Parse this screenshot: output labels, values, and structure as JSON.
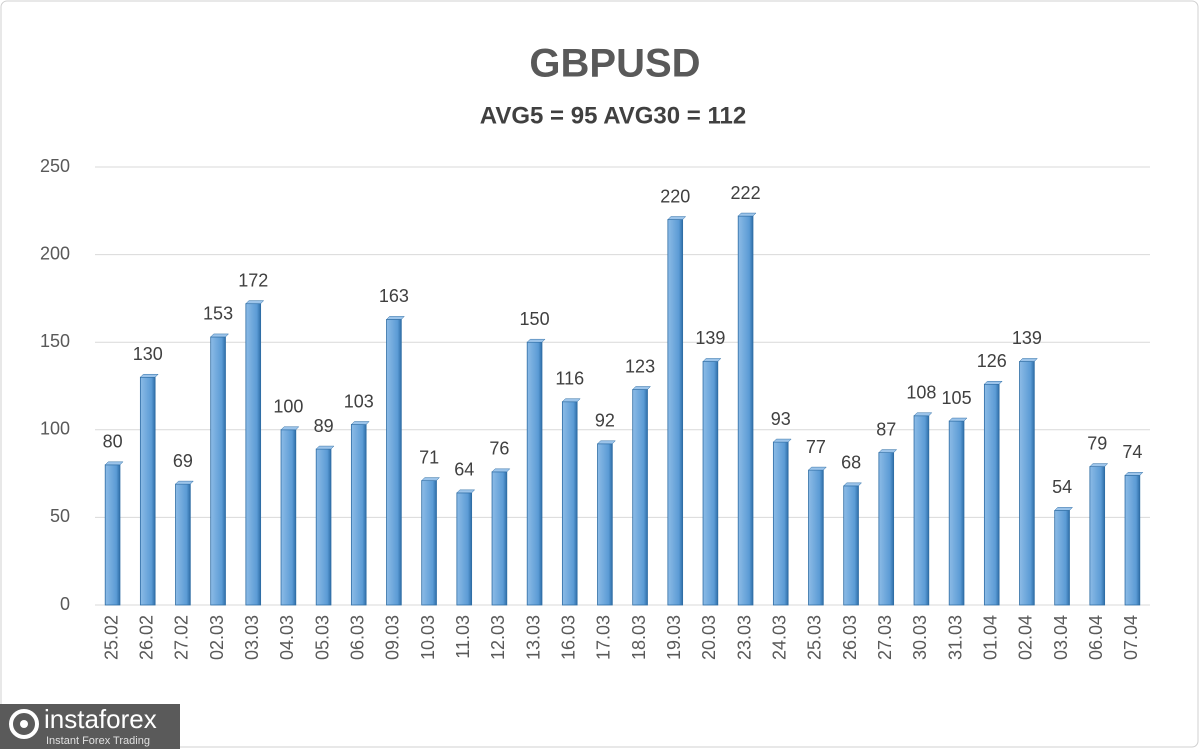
{
  "chart_data": {
    "type": "bar",
    "title": "GBPUSD",
    "subtitle": "AVG5 = 95 AVG30 = 112",
    "categories": [
      "25.02",
      "26.02",
      "27.02",
      "02.03",
      "03.03",
      "04.03",
      "05.03",
      "06.03",
      "09.03",
      "10.03",
      "11.03",
      "12.03",
      "13.03",
      "16.03",
      "17.03",
      "18.03",
      "19.03",
      "20.03",
      "23.03",
      "24.03",
      "25.03",
      "26.03",
      "27.03",
      "30.03",
      "31.03",
      "01.04",
      "02.04",
      "03.04",
      "06.04",
      "07.04"
    ],
    "values": [
      80,
      130,
      69,
      153,
      172,
      100,
      89,
      103,
      163,
      71,
      64,
      76,
      150,
      116,
      92,
      123,
      220,
      139,
      222,
      93,
      77,
      68,
      87,
      108,
      105,
      126,
      139,
      54,
      79,
      74
    ],
    "color": "#5b9bd5",
    "ylim": [
      0,
      250
    ],
    "yticks": [
      0,
      50,
      100,
      150,
      200,
      250
    ],
    "grid": true
  },
  "logo": {
    "brand": "instaforex",
    "tagline": "Instant Forex Trading"
  }
}
